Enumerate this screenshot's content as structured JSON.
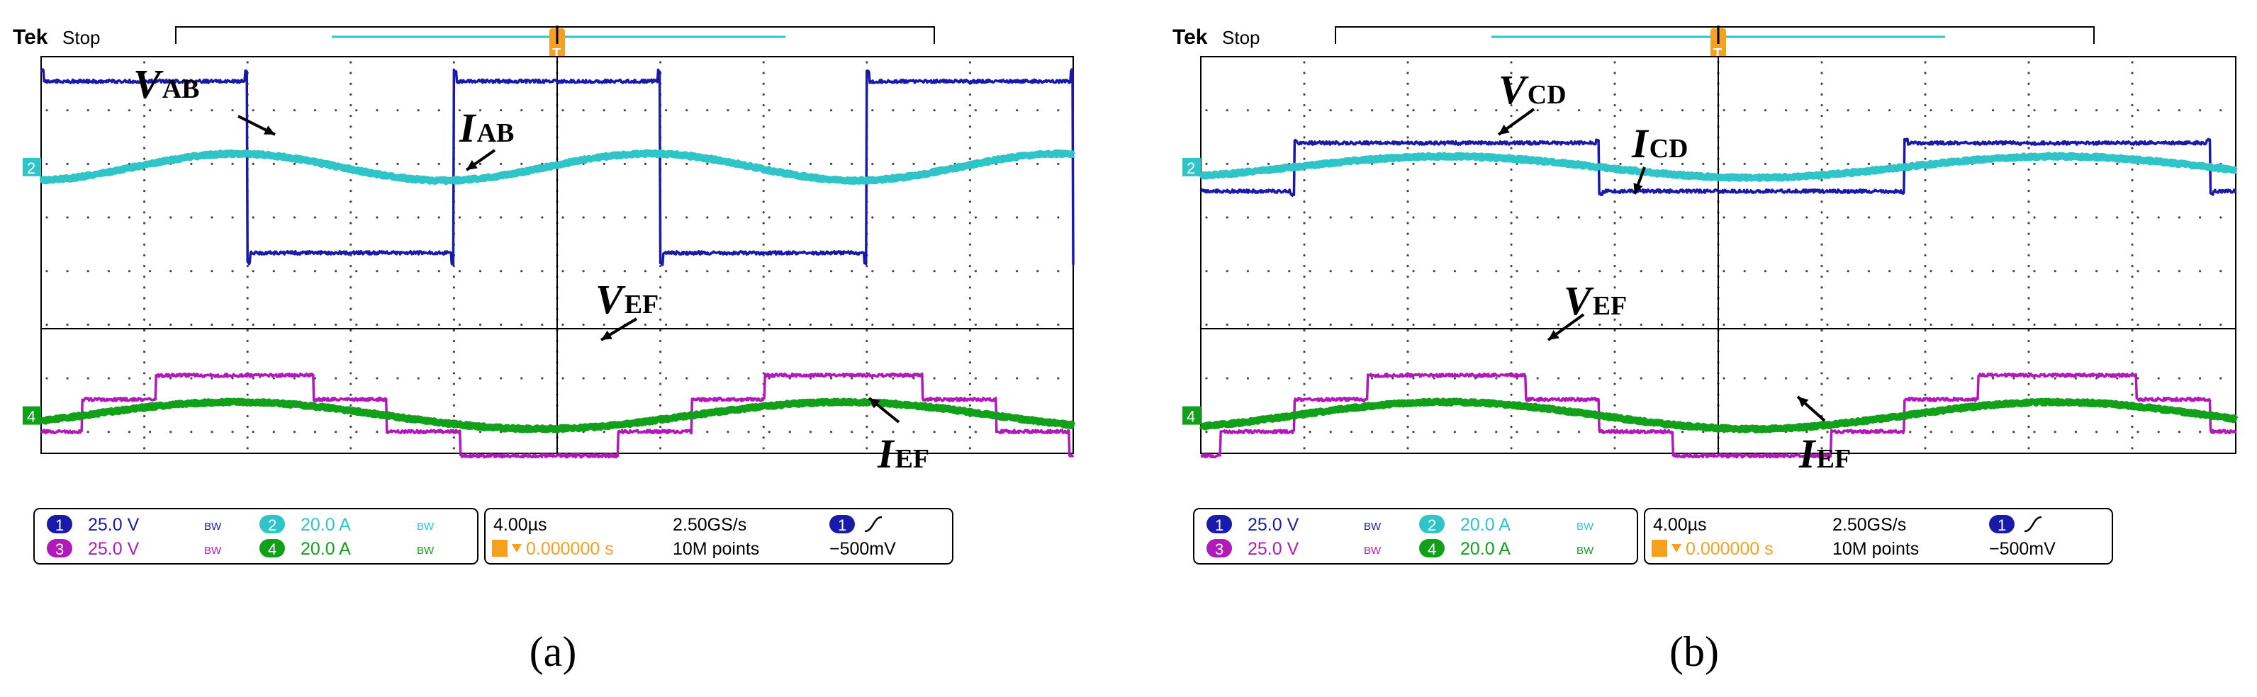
{
  "panels": [
    {
      "id": "a",
      "caption": "(a)",
      "brand": "Tek",
      "status": "Stop",
      "labels": {
        "v_top": "V",
        "v_top_sub": "AB",
        "i_top": "I",
        "i_top_sub": "AB",
        "v_bot": "V",
        "v_bot_sub": "EF",
        "i_bot": "I",
        "i_bot_sub": "EF"
      },
      "info": {
        "ch1": "25.0 V",
        "ch2": "20.0 A",
        "ch3": "25.0 V",
        "ch4": "20.0 A",
        "timebase": "4.00µs",
        "samplerate": "2.50GS/s",
        "points": "10M points",
        "trigger_pos": "0.000000 s",
        "trigger_level": "−500mV",
        "ch1_num": "1",
        "ch2_num": "2",
        "ch3_num": "3",
        "ch4_num": "4",
        "bw": "BW",
        "ch_marker_top": "2",
        "ch_marker_bot": "4",
        "trig_marker": "T"
      }
    },
    {
      "id": "b",
      "caption": "(b)",
      "brand": "Tek",
      "status": "Stop",
      "labels": {
        "v_top": "V",
        "v_top_sub": "CD",
        "i_top": "I",
        "i_top_sub": "CD",
        "v_bot": "V",
        "v_bot_sub": "EF",
        "i_bot": "I",
        "i_bot_sub": "EF"
      },
      "info": {
        "ch1": "25.0 V",
        "ch2": "20.0 A",
        "ch3": "25.0 V",
        "ch4": "20.0 A",
        "timebase": "4.00µs",
        "samplerate": "2.50GS/s",
        "points": "10M points",
        "trigger_pos": "0.000000 s",
        "trigger_level": "−500mV",
        "ch1_num": "1",
        "ch2_num": "2",
        "ch3_num": "3",
        "ch4_num": "4",
        "bw": "BW",
        "ch_marker_top": "2",
        "ch_marker_bot": "4",
        "trig_marker": "T"
      }
    }
  ],
  "colors": {
    "ch1": "#1a1aa8",
    "ch2": "#2ec4c8",
    "ch3": "#b01ab8",
    "ch4": "#12a01a",
    "trigger": "#f5a01e"
  },
  "chart_data": [
    {
      "type": "line",
      "panel": "a",
      "x_unit": "divisions (4.00µs/div)",
      "xlim": [
        0,
        10
      ],
      "series": [
        {
          "name": "VAB",
          "channel": 1,
          "shape": "square",
          "period_div": 4.0,
          "phase_div": 0.0,
          "amp_div": 1.6
        },
        {
          "name": "IAB",
          "channel": 2,
          "shape": "sine",
          "period_div": 4.0,
          "phase_div": 0.9,
          "amp_div": 0.25
        },
        {
          "name": "VEF",
          "channel": 3,
          "shape": "stepped",
          "period_div": 5.9,
          "phase_div": 0.4,
          "levels_div": [
            0.75,
            0.3,
            -0.3,
            -0.75
          ]
        },
        {
          "name": "IEF",
          "channel": 4,
          "shape": "sine",
          "period_div": 5.9,
          "phase_div": 0.4,
          "amp_div": 0.25
        }
      ]
    },
    {
      "type": "line",
      "panel": "b",
      "x_unit": "divisions (4.00µs/div)",
      "xlim": [
        0,
        10
      ],
      "series": [
        {
          "name": "VCD",
          "channel": 1,
          "shape": "square",
          "period_div": 5.9,
          "phase_div": 0.9,
          "amp_div": 0.45
        },
        {
          "name": "ICD",
          "channel": 2,
          "shape": "sine",
          "period_div": 5.9,
          "phase_div": 0.9,
          "amp_div": 0.2
        },
        {
          "name": "VEF",
          "channel": 3,
          "shape": "stepped",
          "period_div": 5.9,
          "phase_div": 0.9,
          "levels_div": [
            0.75,
            0.3,
            -0.3,
            -0.75
          ]
        },
        {
          "name": "IEF",
          "channel": 4,
          "shape": "sine",
          "period_div": 5.9,
          "phase_div": 0.9,
          "amp_div": 0.25
        }
      ]
    }
  ]
}
